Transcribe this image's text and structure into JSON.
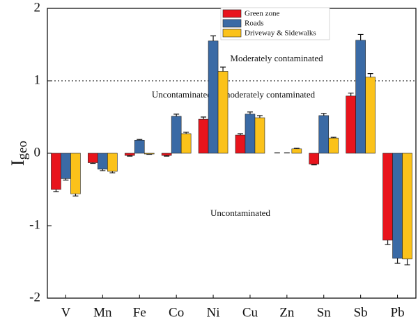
{
  "chart_data": {
    "type": "bar",
    "ylabel": "I",
    "ylabel_sub": "geo",
    "categories": [
      "V",
      "Mn",
      "Fe",
      "Co",
      "Ni",
      "Cu",
      "Zn",
      "Sn",
      "Sb",
      "Pb"
    ],
    "series": [
      {
        "name": "Green zone",
        "color": "#e8141c",
        "values": [
          -0.5,
          -0.13,
          -0.03,
          -0.03,
          0.47,
          0.25,
          0.0,
          -0.15,
          0.79,
          -1.2
        ],
        "errors": [
          0.03,
          0.01,
          0.01,
          0.01,
          0.03,
          0.02,
          0.005,
          0.01,
          0.04,
          0.06
        ]
      },
      {
        "name": "Roads",
        "color": "#3a6aa5",
        "values": [
          -0.35,
          -0.22,
          0.18,
          0.51,
          1.55,
          0.54,
          0.0,
          0.52,
          1.56,
          -1.45
        ],
        "errors": [
          0.02,
          0.02,
          0.01,
          0.03,
          0.07,
          0.03,
          0.005,
          0.03,
          0.08,
          0.07
        ]
      },
      {
        "name": "Driveway & Sidewalks",
        "color": "#fbc21a",
        "values": [
          -0.56,
          -0.25,
          -0.01,
          0.27,
          1.13,
          0.49,
          0.06,
          0.21,
          1.05,
          -1.46
        ],
        "errors": [
          0.03,
          0.02,
          0.005,
          0.02,
          0.06,
          0.03,
          0.01,
          0.01,
          0.05,
          0.08
        ]
      }
    ],
    "ylim": [
      -2,
      2
    ],
    "yticks": [
      -2,
      -1,
      0,
      1,
      2
    ],
    "reference_line": 1,
    "annotations": [
      "Moderately contaminated",
      "Uncontaminated to moderately contaminated",
      "Uncontaminated"
    ]
  }
}
